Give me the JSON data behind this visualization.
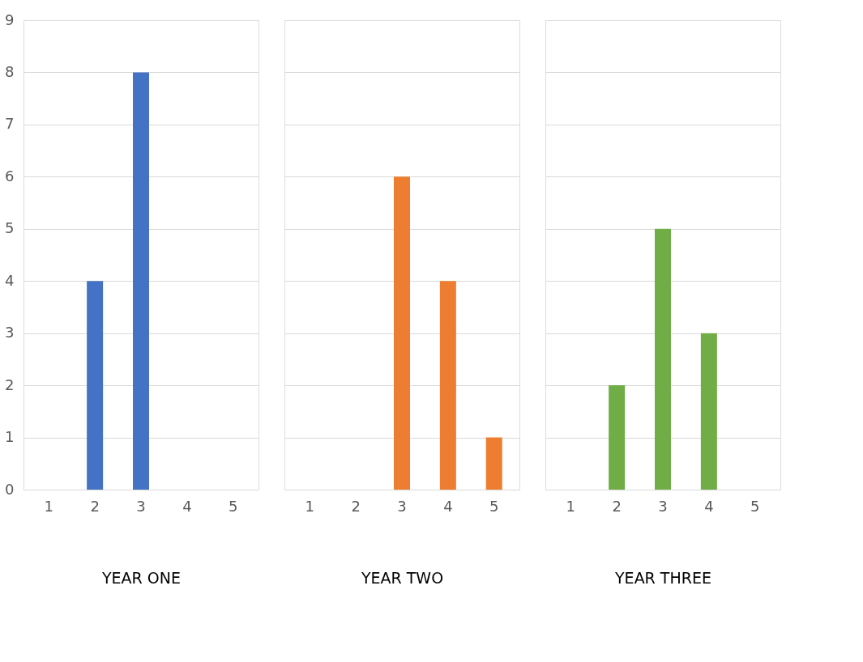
{
  "chart_data": [
    {
      "type": "bar",
      "xlabel": "YEAR ONE",
      "categories": [
        "1",
        "2",
        "3",
        "4",
        "5"
      ],
      "values": [
        0,
        4,
        8,
        0,
        0
      ],
      "color": "#4472c4",
      "ylim": [
        0,
        9
      ],
      "yticks": [
        0,
        1,
        2,
        3,
        4,
        5,
        6,
        7,
        8,
        9
      ],
      "grid": "y"
    },
    {
      "type": "bar",
      "xlabel": "YEAR TWO",
      "categories": [
        "1",
        "2",
        "3",
        "4",
        "5"
      ],
      "values": [
        0,
        0,
        6,
        4,
        1
      ],
      "color": "#ed7d31",
      "ylim": [
        0,
        9
      ],
      "yticks": [
        0,
        1,
        2,
        3,
        4,
        5,
        6,
        7,
        8,
        9
      ],
      "grid": "y",
      "tick_labels": "x"
    },
    {
      "type": "bar",
      "xlabel": "YEAR THREE",
      "categories": [
        "1",
        "2",
        "3",
        "4",
        "5"
      ],
      "values": [
        0,
        2,
        5,
        3,
        0
      ],
      "color": "#70ad47",
      "ylim": [
        0,
        9
      ],
      "yticks": [
        0,
        1,
        2,
        3,
        4,
        5,
        6,
        7,
        8,
        9
      ],
      "grid": "y",
      "tick_labels": "x"
    }
  ]
}
